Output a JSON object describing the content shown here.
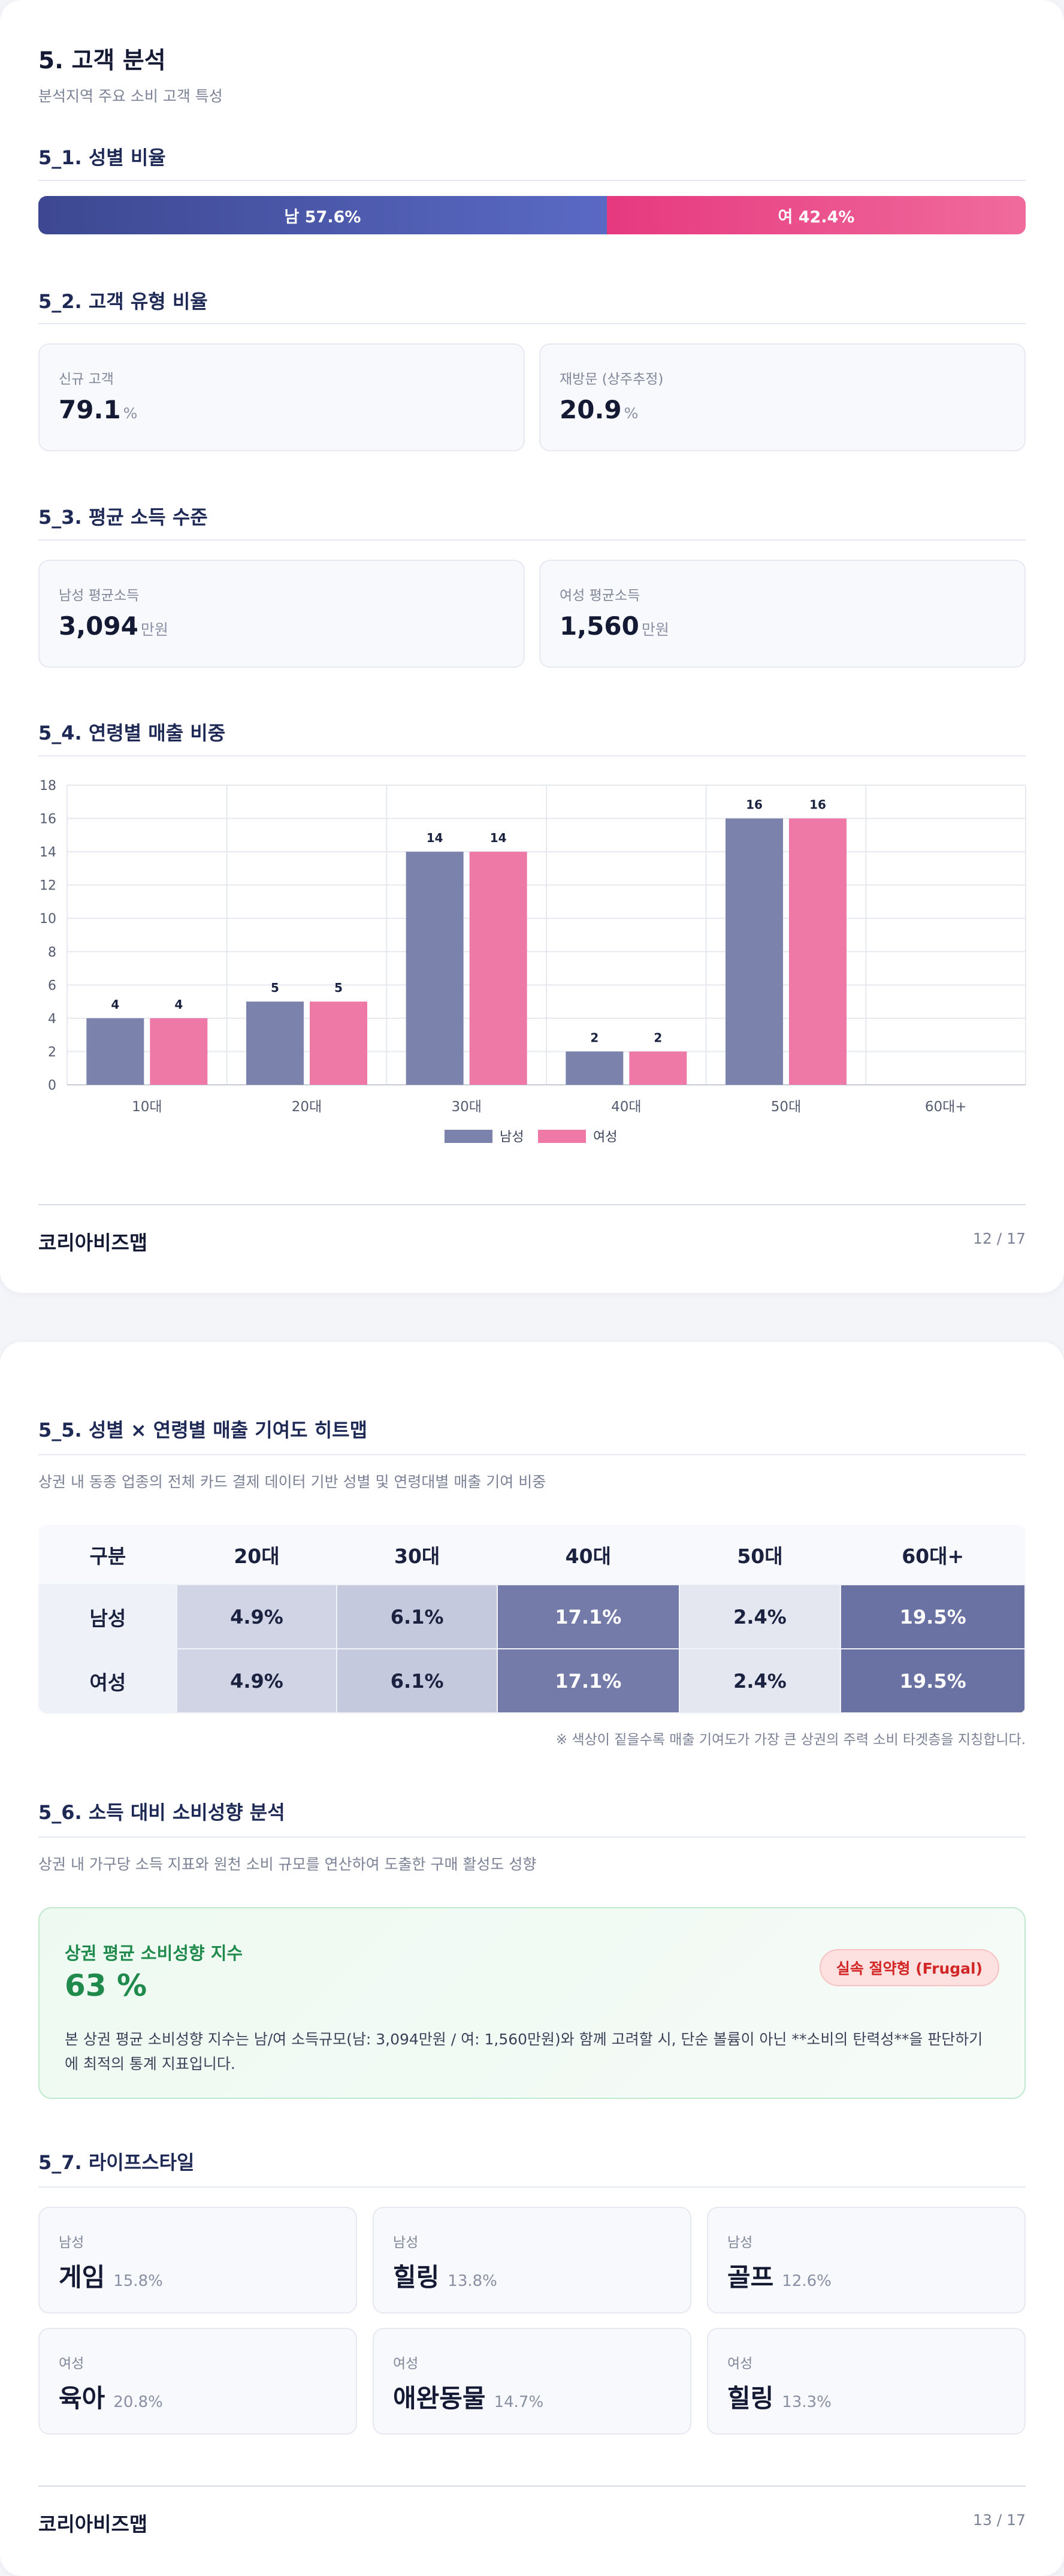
{
  "page1": {
    "title": "5. 고객 분석",
    "subtitle": "분석지역 주요 소비 고객 특성",
    "gender": {
      "title": "5_1. 성별 비율",
      "male": {
        "label": "남 57.6%",
        "share": 57.6,
        "color": "#4f5eaf"
      },
      "female": {
        "label": "여 42.4%",
        "share": 42.4,
        "color": "#ec4d8d"
      }
    },
    "customer_type": {
      "title": "5_2. 고객 유형 비율",
      "items": [
        {
          "label": "신규 고객",
          "value": "79.1",
          "unit": "%"
        },
        {
          "label": "재방문 (상주추정)",
          "value": "20.9",
          "unit": "%"
        }
      ]
    },
    "income": {
      "title": "5_3. 평균 소득 수준",
      "items": [
        {
          "label": "남성 평균소득",
          "value": "3,094",
          "unit": "만원"
        },
        {
          "label": "여성 평균소득",
          "value": "1,560",
          "unit": "만원"
        }
      ]
    },
    "age_sales": {
      "title": "5_4. 연령별 매출 비중"
    },
    "footer": {
      "brand": "코리아비즈맵",
      "page": "12 / 17"
    }
  },
  "chart_data": {
    "type": "bar",
    "categories": [
      "10대",
      "20대",
      "30대",
      "40대",
      "50대",
      "60대+"
    ],
    "series": [
      {
        "name": "남성",
        "values": [
          4,
          5,
          14,
          2,
          16,
          0
        ],
        "labels": [
          "4",
          "5",
          "14",
          "2",
          "16",
          ""
        ],
        "color": "#7b83ad"
      },
      {
        "name": "여성",
        "values": [
          4,
          5,
          14,
          2,
          16,
          0
        ],
        "labels": [
          "4",
          "5",
          "14",
          "2",
          "16",
          ""
        ],
        "color": "#ee79a6"
      }
    ],
    "yticks": [
      "0",
      "2",
      "4",
      "6",
      "8",
      "10",
      "12",
      "14",
      "16",
      "18"
    ],
    "ylim": [
      0,
      18
    ],
    "grid": true,
    "legend": "bottom-center"
  },
  "page2": {
    "heatmap": {
      "title": "5_5. 성별 × 연령별 매출 기여도 히트맵",
      "desc": "상권 내 동종 업종의 전체 카드 결제 데이터 기반 성별 및 연령대별 매출 기여 비중",
      "headers": [
        "구분",
        "20대",
        "30대",
        "40대",
        "50대",
        "60대+"
      ],
      "rows": [
        {
          "label": "남성",
          "cells": [
            {
              "text": "4.9%",
              "bg": "#d1d4e5",
              "fg": "#1b2240"
            },
            {
              "text": "6.1%",
              "bg": "#c5c9de",
              "fg": "#1b2240"
            },
            {
              "text": "17.1%",
              "bg": "#757ba8",
              "fg": "#ffffff"
            },
            {
              "text": "2.4%",
              "bg": "#e4e6f0",
              "fg": "#1b2240"
            },
            {
              "text": "19.5%",
              "bg": "#6a71a3",
              "fg": "#ffffff"
            }
          ]
        },
        {
          "label": "여성",
          "cells": [
            {
              "text": "4.9%",
              "bg": "#d1d4e5",
              "fg": "#1b2240"
            },
            {
              "text": "6.1%",
              "bg": "#c5c9de",
              "fg": "#1b2240"
            },
            {
              "text": "17.1%",
              "bg": "#757ba8",
              "fg": "#ffffff"
            },
            {
              "text": "2.4%",
              "bg": "#e4e6f0",
              "fg": "#1b2240"
            },
            {
              "text": "19.5%",
              "bg": "#6a71a3",
              "fg": "#ffffff"
            }
          ]
        }
      ],
      "note": "※ 색상이 짙을수록 매출 기여도가 가장 큰 상권의 주력 소비 타겟층을 지칭합니다."
    },
    "spending": {
      "title": "5_6. 소득 대비 소비성향 분석",
      "desc": "상권 내 가구당 소득 지표와 원천 소비 규모를 연산하여 도출한 구매 활성도 성향",
      "box_label": "상권 평균 소비성향 지수",
      "value": "63 %",
      "badge": "실속 절약형 (Frugal)",
      "text": "본 상권 평균 소비성향 지수는 남/여 소득규모(남: 3,094만원 / 여: 1,560만원)와 함께 고려할 시, 단순 볼륨이 아닌 **소비의 탄력성**을 판단하기 에 최적의 통계 지표입니다."
    },
    "lifestyle": {
      "title": "5_7. 라이프스타일",
      "items": [
        {
          "gender": "남성",
          "name": "게임",
          "pct": "15.8%"
        },
        {
          "gender": "남성",
          "name": "힐링",
          "pct": "13.8%"
        },
        {
          "gender": "남성",
          "name": "골프",
          "pct": "12.6%"
        },
        {
          "gender": "여성",
          "name": "육아",
          "pct": "20.8%"
        },
        {
          "gender": "여성",
          "name": "애완동물",
          "pct": "14.7%"
        },
        {
          "gender": "여성",
          "name": "힐링",
          "pct": "13.3%"
        }
      ]
    },
    "footer": {
      "brand": "코리아비즈맵",
      "page": "13 / 17"
    }
  }
}
